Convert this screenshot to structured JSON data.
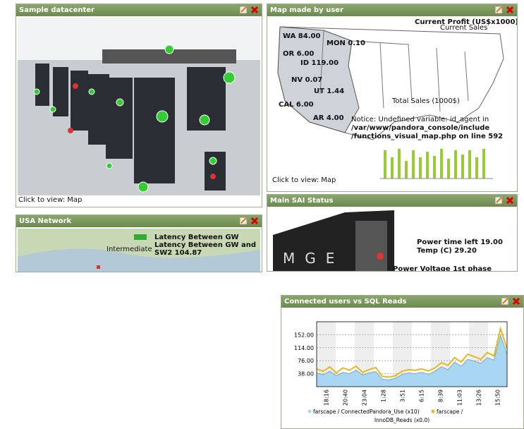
{
  "widgets": [
    {
      "title": "Sample datacenter",
      "caption": "Click to view: Map"
    },
    {
      "title": "Map made by user",
      "labels": [
        "Current Profit (US$x1000)",
        "Current Sales",
        "WA 84.00",
        "MON 0.10",
        "OR 6.00",
        "ID 119.00",
        "NV 0.07",
        "UT 1.44",
        "CAL 6.00",
        "AR 4.00",
        "Total Sales (1000$)"
      ],
      "notice": [
        "Notice: Undefined variable: id_agent in",
        "/var/www/pandora_console/include",
        "/functions_visual_map.php on line 592"
      ],
      "caption": "Click to view: Map"
    },
    {
      "title": "USA Network",
      "labels": [
        "Intermediate",
        "Latency Between GW",
        "Latency Between GW and SW2 104.87"
      ]
    },
    {
      "title": "Main SAI Status",
      "logo": "MGE",
      "labels": [
        "Power time left 19.00",
        "Temp (C) 29.20",
        "Power Voltage 1st phase"
      ]
    },
    {
      "title": "Connected users vs SQL Reads",
      "chart_data": {
        "type": "area",
        "xticks": [
          "18:16",
          "20:40",
          "23:04",
          "1:28",
          "3:51",
          "6:15",
          "8:39",
          "11:03",
          "13:26",
          "15:50"
        ],
        "ylim": [
          0,
          190
        ],
        "yticks": [
          {
            "value": 38,
            "label": "38.00"
          },
          {
            "value": 76,
            "label": "76.00"
          },
          {
            "value": 114,
            "label": "114.00"
          },
          {
            "value": 152,
            "label": "152.00"
          }
        ],
        "grid": true,
        "series": [
          {
            "name": "farscape / ConnectedPandora_Use (x10)",
            "color": "#a9d6f2",
            "values": [
              40,
              35,
              45,
              32,
              42,
              38,
              48,
              34,
              40,
              44,
              22,
              20,
              25,
              35,
              40,
              38,
              42,
              36,
              45,
              58,
              50,
              72,
              60,
              80,
              75,
              68,
              85,
              78,
              150,
              95
            ]
          },
          {
            "name": "farscape / InnoDB_Reads (x0.0)",
            "color": "#e8b820",
            "values": [
              52,
              45,
              58,
              40,
              55,
              48,
              60,
              42,
              50,
              56,
              30,
              28,
              32,
              45,
              50,
              48,
              52,
              46,
              55,
              70,
              62,
              85,
              72,
              95,
              88,
              80,
              100,
              90,
              170,
              110
            ]
          }
        ]
      }
    }
  ]
}
